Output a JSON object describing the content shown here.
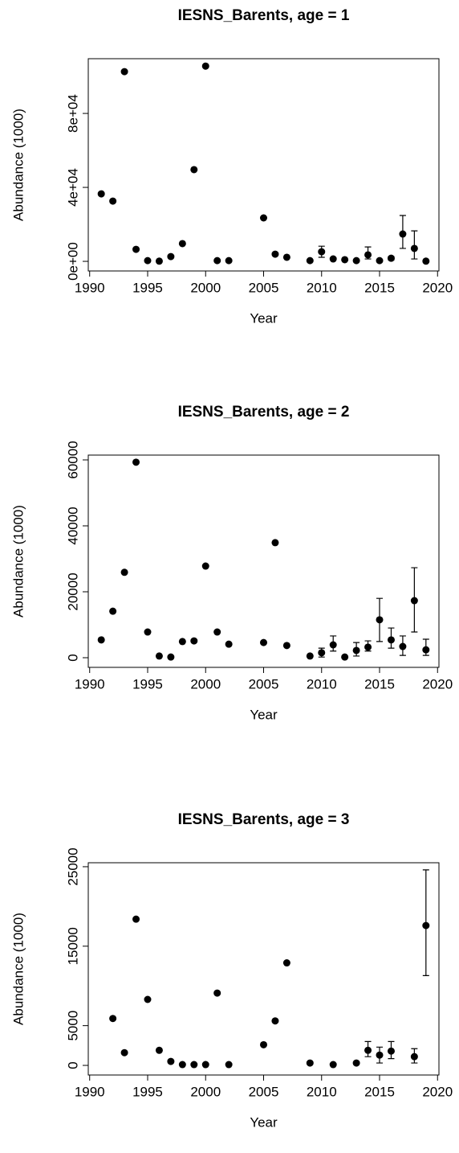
{
  "chart_data": [
    {
      "type": "scatter",
      "title": "IESNS_Barents, age = 1",
      "xlabel": "Year",
      "ylabel": "Abundance (1000)",
      "color": "#000000",
      "x": [
        1991,
        1992,
        1993,
        1994,
        1995,
        1996,
        1997,
        1998,
        1999,
        2000,
        2001,
        2002,
        2005,
        2006,
        2007,
        2009,
        2010,
        2011,
        2012,
        2013,
        2014,
        2015,
        2016,
        2017,
        2018,
        2019
      ],
      "values": [
        36500,
        32600,
        102600,
        6500,
        400,
        100,
        2600,
        9600,
        49600,
        105600,
        400,
        400,
        23500,
        3900,
        2200,
        400,
        5200,
        1300,
        900,
        400,
        3500,
        400,
        1700,
        14800,
        7000,
        100
      ],
      "lower": [
        null,
        null,
        null,
        null,
        null,
        null,
        null,
        null,
        null,
        null,
        null,
        null,
        null,
        null,
        null,
        null,
        2200,
        null,
        null,
        null,
        1300,
        null,
        700,
        7000,
        1300,
        null
      ],
      "upper": [
        null,
        null,
        null,
        null,
        null,
        null,
        null,
        null,
        null,
        null,
        null,
        null,
        null,
        null,
        null,
        null,
        8200,
        null,
        null,
        null,
        7800,
        null,
        2600,
        24800,
        16500,
        null
      ],
      "xlim": [
        1989.88,
        2020.12
      ],
      "ylim": [
        -5200,
        109600
      ],
      "xticks": [
        1990,
        1995,
        2000,
        2005,
        2010,
        2015,
        2020
      ],
      "yticks": [
        {
          "value": 0,
          "label": "0e+00"
        },
        {
          "value": 40000,
          "label": "4e+04"
        },
        {
          "value": 80000,
          "label": "8e+04"
        }
      ]
    },
    {
      "type": "scatter",
      "title": "IESNS_Barents, age = 2",
      "xlabel": "Year",
      "ylabel": "Abundance (1000)",
      "color": "#000000",
      "x": [
        1991,
        1992,
        1993,
        1994,
        1995,
        1996,
        1997,
        1998,
        1999,
        2000,
        2001,
        2002,
        2005,
        2006,
        2007,
        2009,
        2010,
        2011,
        2012,
        2013,
        2014,
        2015,
        2016,
        2017,
        2018,
        2019
      ],
      "values": [
        5400,
        14100,
        25900,
        59300,
        7800,
        500,
        200,
        4900,
        5100,
        27800,
        7800,
        4100,
        4600,
        34900,
        3700,
        500,
        1500,
        3900,
        200,
        2200,
        3200,
        11500,
        5400,
        3400,
        17300,
        2400
      ],
      "lower": [
        null,
        null,
        null,
        null,
        null,
        null,
        null,
        null,
        null,
        null,
        null,
        null,
        null,
        null,
        null,
        null,
        200,
        2000,
        null,
        500,
        2000,
        4900,
        2900,
        700,
        7800,
        700
      ],
      "upper": [
        null,
        null,
        null,
        null,
        null,
        null,
        null,
        null,
        null,
        null,
        null,
        null,
        null,
        null,
        null,
        null,
        2900,
        6600,
        null,
        4600,
        5100,
        18000,
        9000,
        6600,
        27300,
        5600
      ],
      "xlim": [
        1989.88,
        2020.12
      ],
      "ylim": [
        -2930,
        61460
      ],
      "xticks": [
        1990,
        1995,
        2000,
        2005,
        2010,
        2015,
        2020
      ],
      "yticks": [
        0,
        20000,
        40000,
        60000
      ]
    },
    {
      "type": "scatter",
      "title": "IESNS_Barents, age = 3",
      "xlabel": "Year",
      "ylabel": "Abundance (1000)",
      "color": "#000000",
      "x": [
        1992,
        1993,
        1994,
        1995,
        1996,
        1997,
        1998,
        1999,
        2000,
        2001,
        2002,
        2005,
        2006,
        2007,
        2009,
        2011,
        2013,
        2014,
        2015,
        2016,
        2018,
        2019
      ],
      "values": [
        5900,
        1600,
        18400,
        8300,
        1900,
        500,
        100,
        100,
        100,
        9100,
        100,
        2600,
        5600,
        12900,
        300,
        100,
        300,
        1900,
        1300,
        1800,
        1100,
        17600
      ],
      "lower": [
        null,
        null,
        null,
        null,
        null,
        null,
        null,
        null,
        null,
        null,
        null,
        null,
        null,
        null,
        null,
        null,
        null,
        1100,
        300,
        850,
        300,
        11300
      ],
      "upper": [
        null,
        null,
        null,
        null,
        null,
        null,
        null,
        null,
        null,
        null,
        null,
        null,
        null,
        null,
        null,
        null,
        null,
        3000,
        2300,
        3000,
        2100,
        24600
      ],
      "xlim": [
        1989.88,
        2020.12
      ],
      "ylim": [
        -1210,
        25500
      ],
      "xticks": [
        1990,
        1995,
        2000,
        2005,
        2010,
        2015,
        2020
      ],
      "yticks": [
        0,
        5000,
        15000,
        25000
      ]
    }
  ]
}
